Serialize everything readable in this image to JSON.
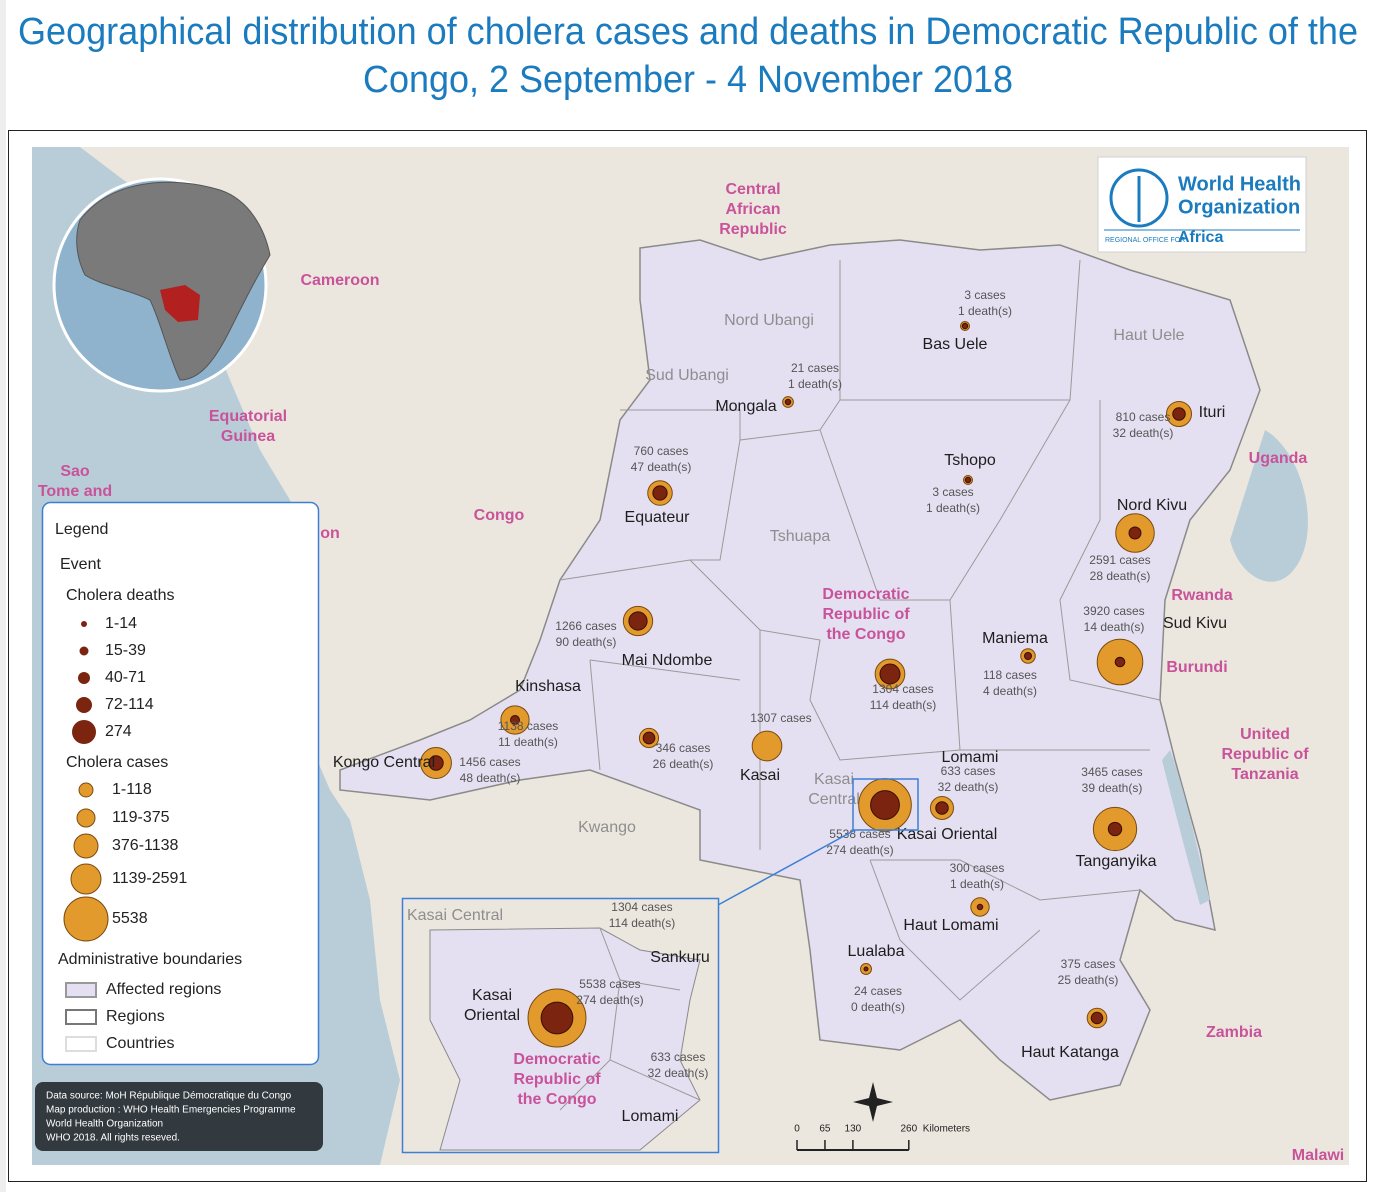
{
  "title": [
    "Geographical distribution of cholera cases and deaths in Democratic Republic of the",
    "Congo, 2 September - 4 November 2018"
  ],
  "logo": {
    "name": [
      "World Health",
      "Organization"
    ],
    "office": "REGIONAL OFFICE FOR",
    "region": "Africa"
  },
  "countries": [
    {
      "lines": [
        "Central",
        "African",
        "Republic"
      ]
    },
    {
      "lines": [
        "Cameroon"
      ]
    },
    {
      "lines": [
        "Equatorial",
        "Guinea"
      ]
    },
    {
      "lines": [
        "Sao",
        "Tome and"
      ]
    },
    {
      "lines": [
        "on"
      ]
    },
    {
      "lines": [
        "Congo"
      ]
    },
    {
      "lines": [
        "Uganda"
      ]
    },
    {
      "lines": [
        "Rwanda"
      ]
    },
    {
      "lines": [
        "Burundi"
      ]
    },
    {
      "lines": [
        "United",
        "Republic of",
        "Tanzania"
      ]
    },
    {
      "lines": [
        "Zambia"
      ]
    },
    {
      "lines": [
        "Malawi"
      ]
    },
    {
      "lines": [
        "Democratic",
        "Republic of",
        "the Congo"
      ]
    }
  ],
  "regions": [
    {
      "lines": [
        "Nord Ubangi"
      ]
    },
    {
      "lines": [
        "Sud Ubangi"
      ]
    },
    {
      "lines": [
        "Haut Uele"
      ]
    },
    {
      "lines": [
        "Tshuapa"
      ]
    },
    {
      "lines": [
        "Kwango"
      ]
    },
    {
      "lines": [
        "Kasai",
        "Central"
      ]
    }
  ],
  "provinces": [
    {
      "name": "Bas Uele",
      "cases": 3,
      "cases_label": "3 cases",
      "deaths": 1,
      "deaths_label": "1 death(s)"
    },
    {
      "name": "Mongala",
      "cases": 21,
      "cases_label": "21 cases",
      "deaths": 1,
      "deaths_label": "1 death(s)"
    },
    {
      "name": "Ituri",
      "cases": 810,
      "cases_label": "810 cases",
      "deaths": 32,
      "deaths_label": "32 death(s)"
    },
    {
      "name": "Tshopo",
      "cases": 3,
      "cases_label": "3 cases",
      "deaths": 1,
      "deaths_label": "1 death(s)"
    },
    {
      "name": "Equateur",
      "cases": 760,
      "cases_label": "760 cases",
      "deaths": 47,
      "deaths_label": "47 death(s)"
    },
    {
      "name": "Nord Kivu",
      "cases": 2591,
      "cases_label": "2591 cases",
      "deaths": 28,
      "deaths_label": "28 death(s)"
    },
    {
      "name": "Mai Ndombe",
      "cases": 1266,
      "cases_label": "1266 cases",
      "deaths": 90,
      "deaths_label": "90 death(s)"
    },
    {
      "name": "Sud Kivu",
      "cases": 3920,
      "cases_label": "3920 cases",
      "deaths": 14,
      "deaths_label": "14 death(s)"
    },
    {
      "name": "Maniema",
      "cases": 118,
      "cases_label": "118 cases",
      "deaths": 4,
      "deaths_label": "4 death(s)"
    },
    {
      "cases": 1304,
      "cases_label": "1304 cases",
      "deaths": 114,
      "deaths_label": "114 death(s)"
    },
    {
      "name": "Kinshasa",
      "cases": 1138,
      "cases_label": "1138 cases",
      "deaths": 11,
      "deaths_label": "11 death(s)"
    },
    {
      "cases": 346,
      "cases_label": "346 cases",
      "deaths": 26,
      "deaths_label": "26 death(s)"
    },
    {
      "name": "Kasai",
      "cases": 1307,
      "cases_label": "1307 cases"
    },
    {
      "name": "Kongo Central",
      "cases": 1456,
      "cases_label": "1456 cases",
      "deaths": 48,
      "deaths_label": "48 death(s)"
    },
    {
      "name": "Kasai Oriental",
      "cases": 5538,
      "cases_label": "5538 cases",
      "deaths": 274,
      "deaths_label": "274 death(s)"
    },
    {
      "name": "Lomami",
      "cases": 633,
      "cases_label": "633 cases",
      "deaths": 32,
      "deaths_label": "32 death(s)"
    },
    {
      "name": "Tanganyika",
      "cases": 3465,
      "cases_label": "3465 cases",
      "deaths": 39,
      "deaths_label": "39 death(s)"
    },
    {
      "name": "Haut Lomami",
      "cases": 300,
      "cases_label": "300 cases",
      "deaths": 1,
      "deaths_label": "1 death(s)"
    },
    {
      "name": "Lualaba",
      "cases": 24,
      "cases_label": "24 cases",
      "deaths": 0,
      "deaths_label": "0 death(s)"
    },
    {
      "name": "Haut Katanga",
      "cases": 375,
      "cases_label": "375 cases",
      "deaths": 25,
      "deaths_label": "25 death(s)"
    }
  ],
  "inset": {
    "region": "Kasai Central",
    "country": [
      "Democratic",
      "Republic of",
      "the Congo"
    ],
    "areas": [
      {
        "name": "Sankuru",
        "cases": 1304,
        "cases_label": "1304 cases",
        "deaths": 114,
        "deaths_label": "114 death(s)"
      },
      {
        "name": [
          "Kasai",
          "Oriental"
        ],
        "cases": 5538,
        "cases_label": "5538 cases",
        "deaths": 274,
        "deaths_label": "274 death(s)"
      },
      {
        "name": "Lomami",
        "cases": 633,
        "cases_label": "633 cases",
        "deaths": 32,
        "deaths_label": "32 death(s)"
      }
    ]
  },
  "legend": {
    "title": "Legend",
    "event": "Event",
    "deaths_title": "Cholera deaths",
    "deaths_classes": [
      "1-14",
      "15-39",
      "40-71",
      "72-114",
      "274"
    ],
    "cases_title": "Cholera cases",
    "cases_classes": [
      "1-118",
      "119-375",
      "376-1138",
      "1139-2591",
      "5538"
    ],
    "boundaries_title": "Administrative boundaries",
    "boundaries": [
      "Affected regions",
      "Regions",
      "Countries"
    ]
  },
  "scale": {
    "ticks": [
      0,
      65,
      130,
      260
    ],
    "unit": "Kilometers"
  },
  "data_source": [
    "Data source: MoH République Démocratique du Congo",
    "Map production : WHO Health Emergencies Programme",
    "World Health Organization",
    "WHO 2018. All rights reseved."
  ]
}
